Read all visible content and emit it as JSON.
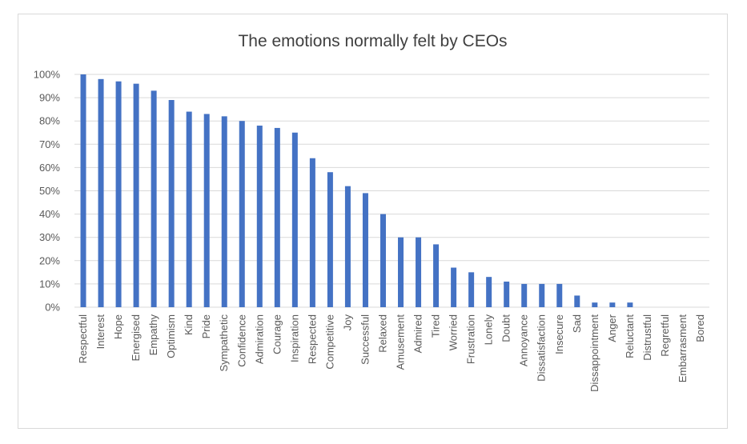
{
  "chart_data": {
    "type": "bar",
    "title": "The emotions normally felt by CEOs",
    "xlabel": "",
    "ylabel": "",
    "ylim": [
      0,
      100
    ],
    "yticks": [
      "0%",
      "10%",
      "20%",
      "30%",
      "40%",
      "50%",
      "60%",
      "70%",
      "80%",
      "90%",
      "100%"
    ],
    "grid": true,
    "legend": "none",
    "bar_color": "#4472c4",
    "grid_color": "#d9d9d9",
    "categories": [
      "Respectful",
      "Interest",
      "Hope",
      "Energised",
      "Empathy",
      "Optimism",
      "Kind",
      "Pride",
      "Sympathetic",
      "Confidence",
      "Admiration",
      "Courage",
      "Inspiration",
      "Respected",
      "Competitive",
      "Joy",
      "Successful",
      "Relaxed",
      "Amusement",
      "Admired",
      "Tired",
      "Worried",
      "Frustration",
      "Lonely",
      "Doubt",
      "Annoyance",
      "Dissatisfaction",
      "Insecure",
      "Sad",
      "Dissappointment",
      "Anger",
      "Reluctant",
      "Distrustful",
      "Regretful",
      "Embarrasment",
      "Bored"
    ],
    "values": [
      100,
      98,
      97,
      96,
      93,
      89,
      84,
      83,
      82,
      80,
      78,
      77,
      75,
      64,
      58,
      52,
      49,
      40,
      30,
      30,
      27,
      17,
      15,
      13,
      11,
      10,
      10,
      10,
      5,
      2,
      2,
      2,
      0,
      0,
      0,
      0
    ]
  }
}
